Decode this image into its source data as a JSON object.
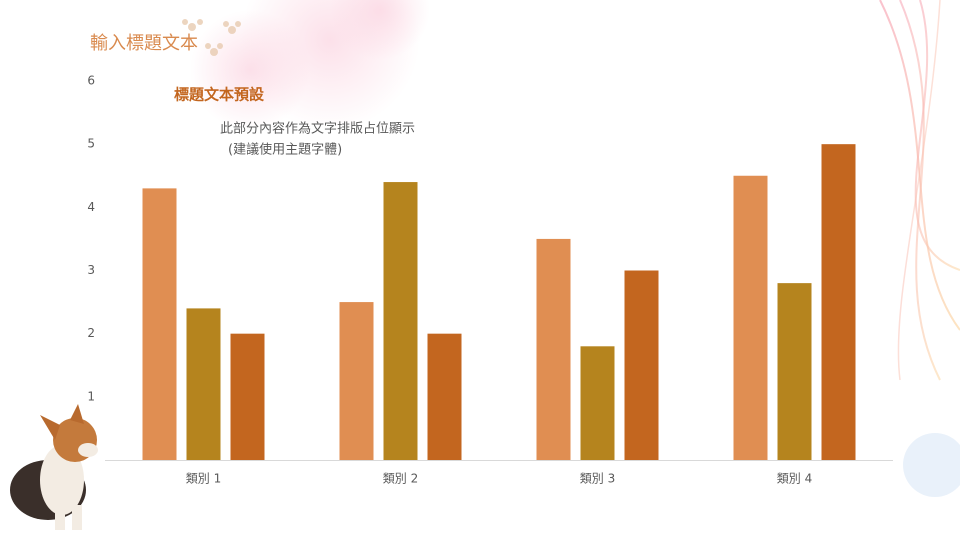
{
  "slide_title": "輸入標題文本",
  "chart_data": {
    "type": "bar",
    "title": "標題文本預設",
    "annotations": [
      "此部分內容作為文字排版占位顯示",
      "(建議使用主題字體)"
    ],
    "categories": [
      "類別 1",
      "類別 2",
      "類別 3",
      "類別 4"
    ],
    "series": [
      {
        "color": "#E08E52",
        "values": [
          4.3,
          2.5,
          3.5,
          4.5
        ]
      },
      {
        "color": "#B5841E",
        "values": [
          2.4,
          4.4,
          1.8,
          2.8
        ]
      },
      {
        "color": "#C3661F",
        "values": [
          2,
          2,
          3,
          5
        ]
      }
    ],
    "ylim": [
      0,
      6
    ],
    "yticks": [
      1,
      2,
      3,
      4,
      5,
      6
    ],
    "grid": false
  }
}
